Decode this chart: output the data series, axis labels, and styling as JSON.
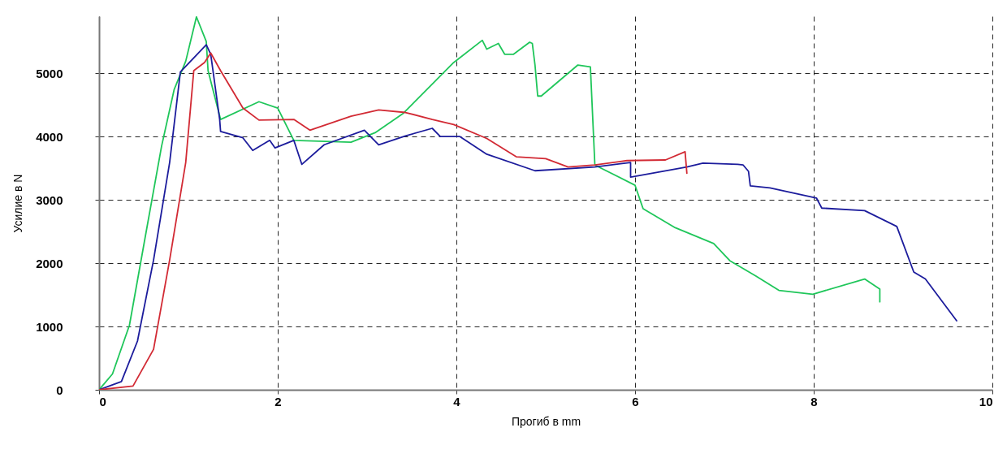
{
  "chart_data": {
    "type": "line",
    "xlabel": "Прогиб в mm",
    "ylabel": "Усилие в N",
    "xlim": [
      0,
      10
    ],
    "ylim": [
      0,
      5900
    ],
    "xticks": [
      0,
      2,
      4,
      6,
      8,
      10
    ],
    "yticks": [
      0,
      1000,
      2000,
      3000,
      4000,
      5000
    ],
    "grid": true,
    "series": [
      {
        "color": "#1fc65a",
        "x": [
          0,
          0.15,
          0.34,
          0.52,
          0.7,
          0.84,
          0.97,
          1.09,
          1.2,
          1.22,
          1.36,
          1.79,
          2.0,
          2.18,
          2.82,
          3.09,
          3.4,
          3.97,
          4.29,
          4.34,
          4.47,
          4.54,
          4.64,
          4.82,
          4.85,
          4.88,
          4.91,
          4.95,
          5.36,
          5.5,
          5.55,
          6.0,
          6.09,
          6.45,
          6.88,
          7.06,
          7.35,
          7.61,
          7.99,
          8.57,
          8.74,
          8.74
        ],
        "values": [
          0,
          250,
          1020,
          2440,
          3850,
          4740,
          5190,
          5890,
          5500,
          5040,
          4270,
          4550,
          4450,
          3940,
          3910,
          4060,
          4360,
          5170,
          5520,
          5380,
          5470,
          5300,
          5300,
          5490,
          5470,
          5130,
          4640,
          4640,
          5130,
          5100,
          3550,
          3230,
          2860,
          2560,
          2310,
          2040,
          1800,
          1570,
          1510,
          1750,
          1590,
          1390
        ]
      },
      {
        "color": "#1c1c9c",
        "x": [
          0,
          0.25,
          0.43,
          0.61,
          0.79,
          0.91,
          1.2,
          1.25,
          1.35,
          1.36,
          1.61,
          1.72,
          1.91,
          1.97,
          2.18,
          2.27,
          2.52,
          2.97,
          3.13,
          3.43,
          3.73,
          3.82,
          4.04,
          4.34,
          4.88,
          5.55,
          5.95,
          5.95,
          6.58,
          6.76,
          7.15,
          7.21,
          7.27,
          7.29,
          7.51,
          8.03,
          8.09,
          8.57,
          8.93,
          9.12,
          9.25,
          9.6
        ],
        "values": [
          0,
          130,
          770,
          2050,
          3590,
          5020,
          5450,
          5300,
          4270,
          4080,
          3980,
          3780,
          3940,
          3820,
          3940,
          3560,
          3870,
          4100,
          3870,
          4010,
          4130,
          4000,
          4000,
          3720,
          3460,
          3520,
          3590,
          3360,
          3520,
          3580,
          3560,
          3550,
          3450,
          3220,
          3190,
          3030,
          2870,
          2830,
          2580,
          1860,
          1750,
          1090
        ]
      },
      {
        "color": "#d22a34",
        "x": [
          0,
          0.38,
          0.61,
          0.79,
          0.97,
          1.06,
          1.18,
          1.25,
          1.36,
          1.61,
          1.79,
          2.18,
          2.36,
          2.82,
          3.13,
          3.43,
          3.73,
          3.97,
          4.34,
          4.67,
          5.0,
          5.25,
          5.55,
          5.91,
          6.34,
          6.56,
          6.58
        ],
        "values": [
          0,
          60,
          640,
          2050,
          3590,
          5040,
          5170,
          5320,
          5040,
          4450,
          4260,
          4270,
          4100,
          4320,
          4420,
          4380,
          4270,
          4190,
          3970,
          3680,
          3650,
          3520,
          3550,
          3620,
          3630,
          3760,
          3420
        ]
      }
    ]
  }
}
